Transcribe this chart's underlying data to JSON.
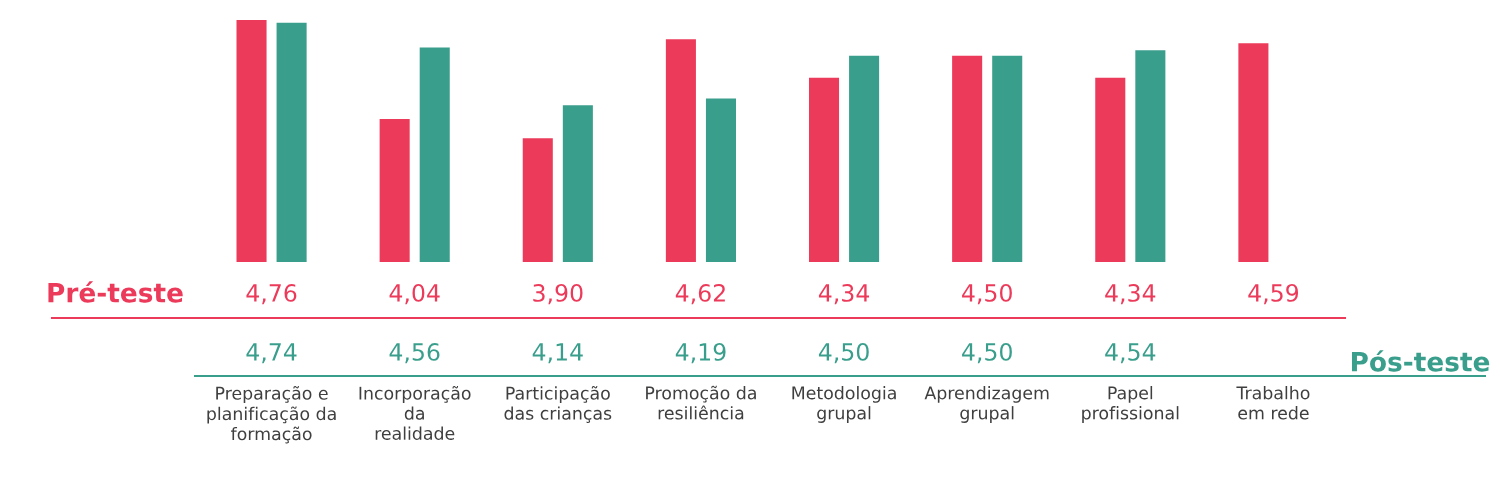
{
  "chart_data": {
    "type": "bar",
    "categories": [
      "Preparação e\nplanificação da\nformação",
      "Incorporação\nda\nrealidade",
      "Participação\ndas crianças",
      "Promoção da\nresiliência",
      "Metodologia\ngrupal",
      "Aprendizagem\ngrupal",
      "Papel\nprofissional",
      "Trabalho\nem rede"
    ],
    "series": [
      {
        "name": "Pré-teste",
        "color": "#ec3a5a",
        "values": [
          4.76,
          4.04,
          3.9,
          4.62,
          4.34,
          4.5,
          4.34,
          4.59
        ],
        "value_labels": [
          "4,76",
          "4,04",
          "3,90",
          "4,62",
          "4,34",
          "4,50",
          "4,34",
          "4,59"
        ]
      },
      {
        "name": "Pós-teste",
        "color": "#3a9e8c",
        "values": [
          4.74,
          4.56,
          4.14,
          4.19,
          4.5,
          4.5,
          4.54,
          null
        ],
        "value_labels": [
          "4,74",
          "4,56",
          "4,14",
          "4,19",
          "4,50",
          "4,50",
          "4,54",
          null
        ]
      }
    ],
    "ylim": [
      3.0,
      4.76
    ],
    "tick_labels": "x",
    "legend": false
  }
}
